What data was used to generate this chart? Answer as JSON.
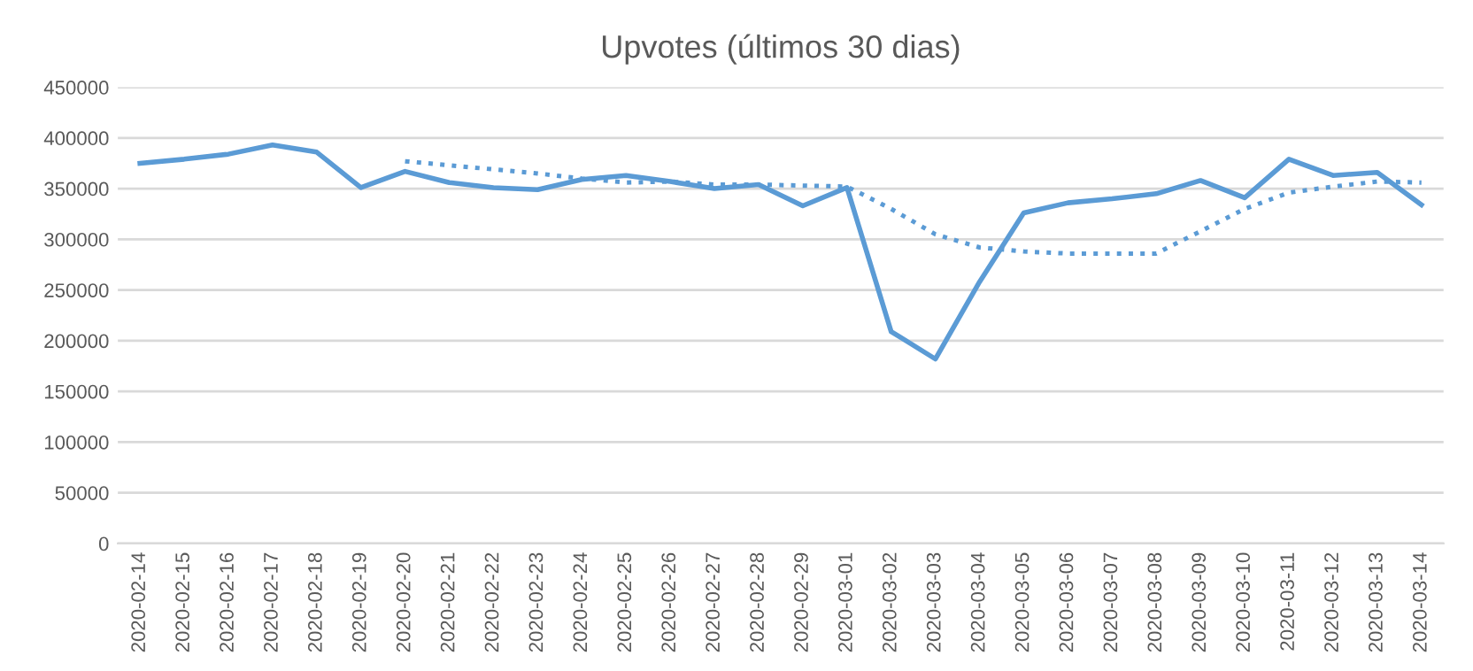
{
  "chart_data": {
    "type": "line",
    "title": "Upvotes (últimos 30 dias)",
    "categories": [
      "2020-02-14",
      "2020-02-15",
      "2020-02-16",
      "2020-02-17",
      "2020-02-18",
      "2020-02-19",
      "2020-02-20",
      "2020-02-21",
      "2020-02-22",
      "2020-02-23",
      "2020-02-24",
      "2020-02-25",
      "2020-02-26",
      "2020-02-27",
      "2020-02-28",
      "2020-02-29",
      "2020-03-01",
      "2020-03-02",
      "2020-03-03",
      "2020-03-04",
      "2020-03-05",
      "2020-03-06",
      "2020-03-07",
      "2020-03-08",
      "2020-03-09",
      "2020-03-10",
      "2020-03-11",
      "2020-03-12",
      "2020-03-13",
      "2020-03-14"
    ],
    "series": [
      {
        "color": "#5b9bd5",
        "line_style": "solid",
        "values": [
          375000,
          379000,
          384000,
          393000,
          386000,
          351000,
          367000,
          356000,
          351000,
          349000,
          359000,
          363000,
          357000,
          350000,
          354000,
          333000,
          351000,
          209000,
          182000,
          258000,
          326000,
          336000,
          340000,
          345000,
          358000,
          341000,
          379000,
          363000,
          366000,
          334000
        ]
      },
      {
        "color": "#5b9bd5",
        "line_style": "dotted",
        "values": [
          null,
          null,
          null,
          null,
          null,
          null,
          377000,
          373000,
          369000,
          365000,
          360000,
          356000,
          357000,
          354000,
          354000,
          353000,
          352000,
          330000,
          305000,
          292000,
          288000,
          286000,
          286000,
          286000,
          308000,
          330000,
          346000,
          352000,
          357000,
          356000
        ]
      }
    ],
    "ylim": [
      0,
      450000
    ],
    "yticks": [
      0,
      50000,
      100000,
      150000,
      200000,
      250000,
      300000,
      350000,
      400000,
      450000
    ],
    "grid": "y",
    "legend": false,
    "marker": "none"
  }
}
